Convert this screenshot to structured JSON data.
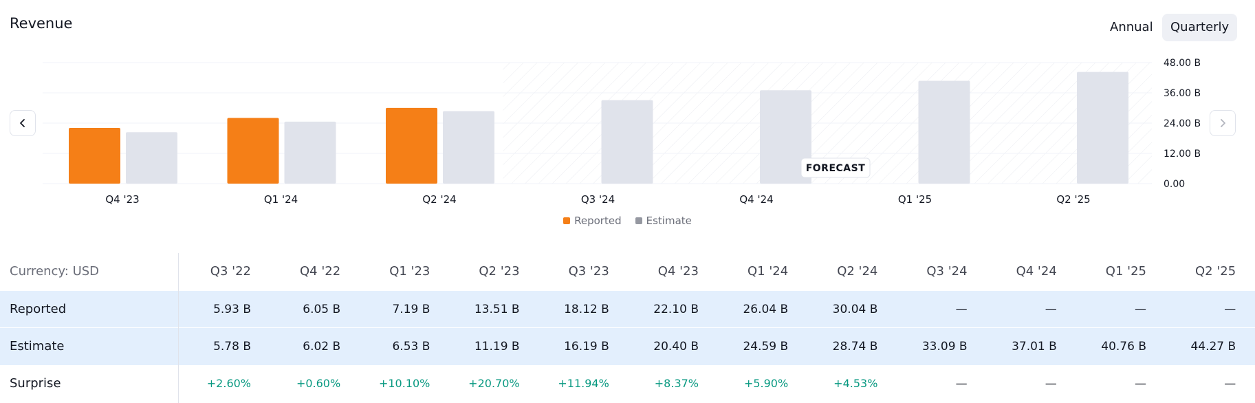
{
  "header": {
    "title": "Revenue",
    "period_toggle": {
      "annual_label": "Annual",
      "quarterly_label": "Quarterly",
      "selected": "Quarterly"
    }
  },
  "colors": {
    "reported": "#f57f17",
    "estimate": "#e0e3eb",
    "legend_estimate": "#9598a1",
    "positive": "#089981"
  },
  "chart_data": {
    "type": "bar",
    "categories": [
      "Q4 '23",
      "Q1 '24",
      "Q2 '24",
      "Q3 '24",
      "Q4 '24",
      "Q1 '25",
      "Q2 '25"
    ],
    "series": [
      {
        "name": "Reported",
        "values": [
          22.1,
          26.04,
          30.04,
          null,
          null,
          null,
          null
        ]
      },
      {
        "name": "Estimate",
        "values": [
          20.4,
          24.59,
          28.74,
          33.09,
          37.01,
          40.76,
          44.27
        ]
      }
    ],
    "ylim": [
      0,
      48
    ],
    "y_ticks": [
      "48.00 B",
      "36.00 B",
      "24.00 B",
      "12.00 B",
      "0.00"
    ],
    "y_tick_values": [
      48,
      36,
      24,
      12,
      0
    ],
    "y_axis_position": "right",
    "grid": true,
    "forecast_label": "FORECAST",
    "forecast_start_category": "Q3 '24",
    "legend_placement": "bottom-center"
  },
  "table": {
    "currency_label": "Currency: USD",
    "columns": [
      "Q3 '22",
      "Q4 '22",
      "Q1 '23",
      "Q2 '23",
      "Q3 '23",
      "Q4 '23",
      "Q1 '24",
      "Q2 '24",
      "Q3 '24",
      "Q4 '24",
      "Q1 '25",
      "Q2 '25"
    ],
    "rows": [
      {
        "label": "Reported",
        "values": [
          "5.93 B",
          "6.05 B",
          "7.19 B",
          "13.51 B",
          "18.12 B",
          "22.10 B",
          "26.04 B",
          "30.04 B",
          "—",
          "—",
          "—",
          "—"
        ]
      },
      {
        "label": "Estimate",
        "values": [
          "5.78 B",
          "6.02 B",
          "6.53 B",
          "11.19 B",
          "16.19 B",
          "20.40 B",
          "24.59 B",
          "28.74 B",
          "33.09 B",
          "37.01 B",
          "40.76 B",
          "44.27 B"
        ]
      },
      {
        "label": "Surprise",
        "values": [
          "+2.60%",
          "+0.60%",
          "+10.10%",
          "+20.70%",
          "+11.94%",
          "+8.37%",
          "+5.90%",
          "+4.53%",
          "—",
          "—",
          "—",
          "—"
        ]
      }
    ]
  }
}
